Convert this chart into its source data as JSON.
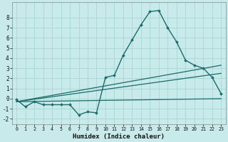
{
  "xlabel": "Humidex (Indice chaleur)",
  "background_color": "#c8eaea",
  "grid_color": "#aad4d4",
  "line_color": "#1a6b6b",
  "xlim": [
    -0.5,
    23.5
  ],
  "ylim": [
    -2.5,
    9.5
  ],
  "xticks": [
    0,
    1,
    2,
    3,
    4,
    5,
    6,
    7,
    8,
    9,
    10,
    11,
    12,
    13,
    14,
    15,
    16,
    17,
    18,
    19,
    20,
    21,
    22,
    23
  ],
  "yticks": [
    -2,
    -1,
    0,
    1,
    2,
    3,
    4,
    5,
    6,
    7,
    8
  ],
  "main_x": [
    0,
    1,
    2,
    3,
    4,
    5,
    6,
    7,
    8,
    9,
    10,
    11,
    12,
    13,
    14,
    15,
    16,
    17,
    18,
    19,
    20,
    21,
    22,
    23
  ],
  "main_y": [
    -0.1,
    -0.8,
    -0.3,
    -0.6,
    -0.6,
    -0.6,
    -0.6,
    -1.6,
    -1.3,
    -1.4,
    2.1,
    2.3,
    4.3,
    5.8,
    7.3,
    8.6,
    8.7,
    7.0,
    5.6,
    3.8,
    3.3,
    3.0,
    2.1,
    0.5
  ],
  "linear_lines": [
    {
      "x0": 0,
      "y0": -0.3,
      "x1": 23,
      "y1": 3.3
    },
    {
      "x0": 0,
      "y0": -0.3,
      "x1": 23,
      "y1": 2.5
    },
    {
      "x0": 0,
      "y0": -0.3,
      "x1": 23,
      "y1": 0.0
    }
  ]
}
